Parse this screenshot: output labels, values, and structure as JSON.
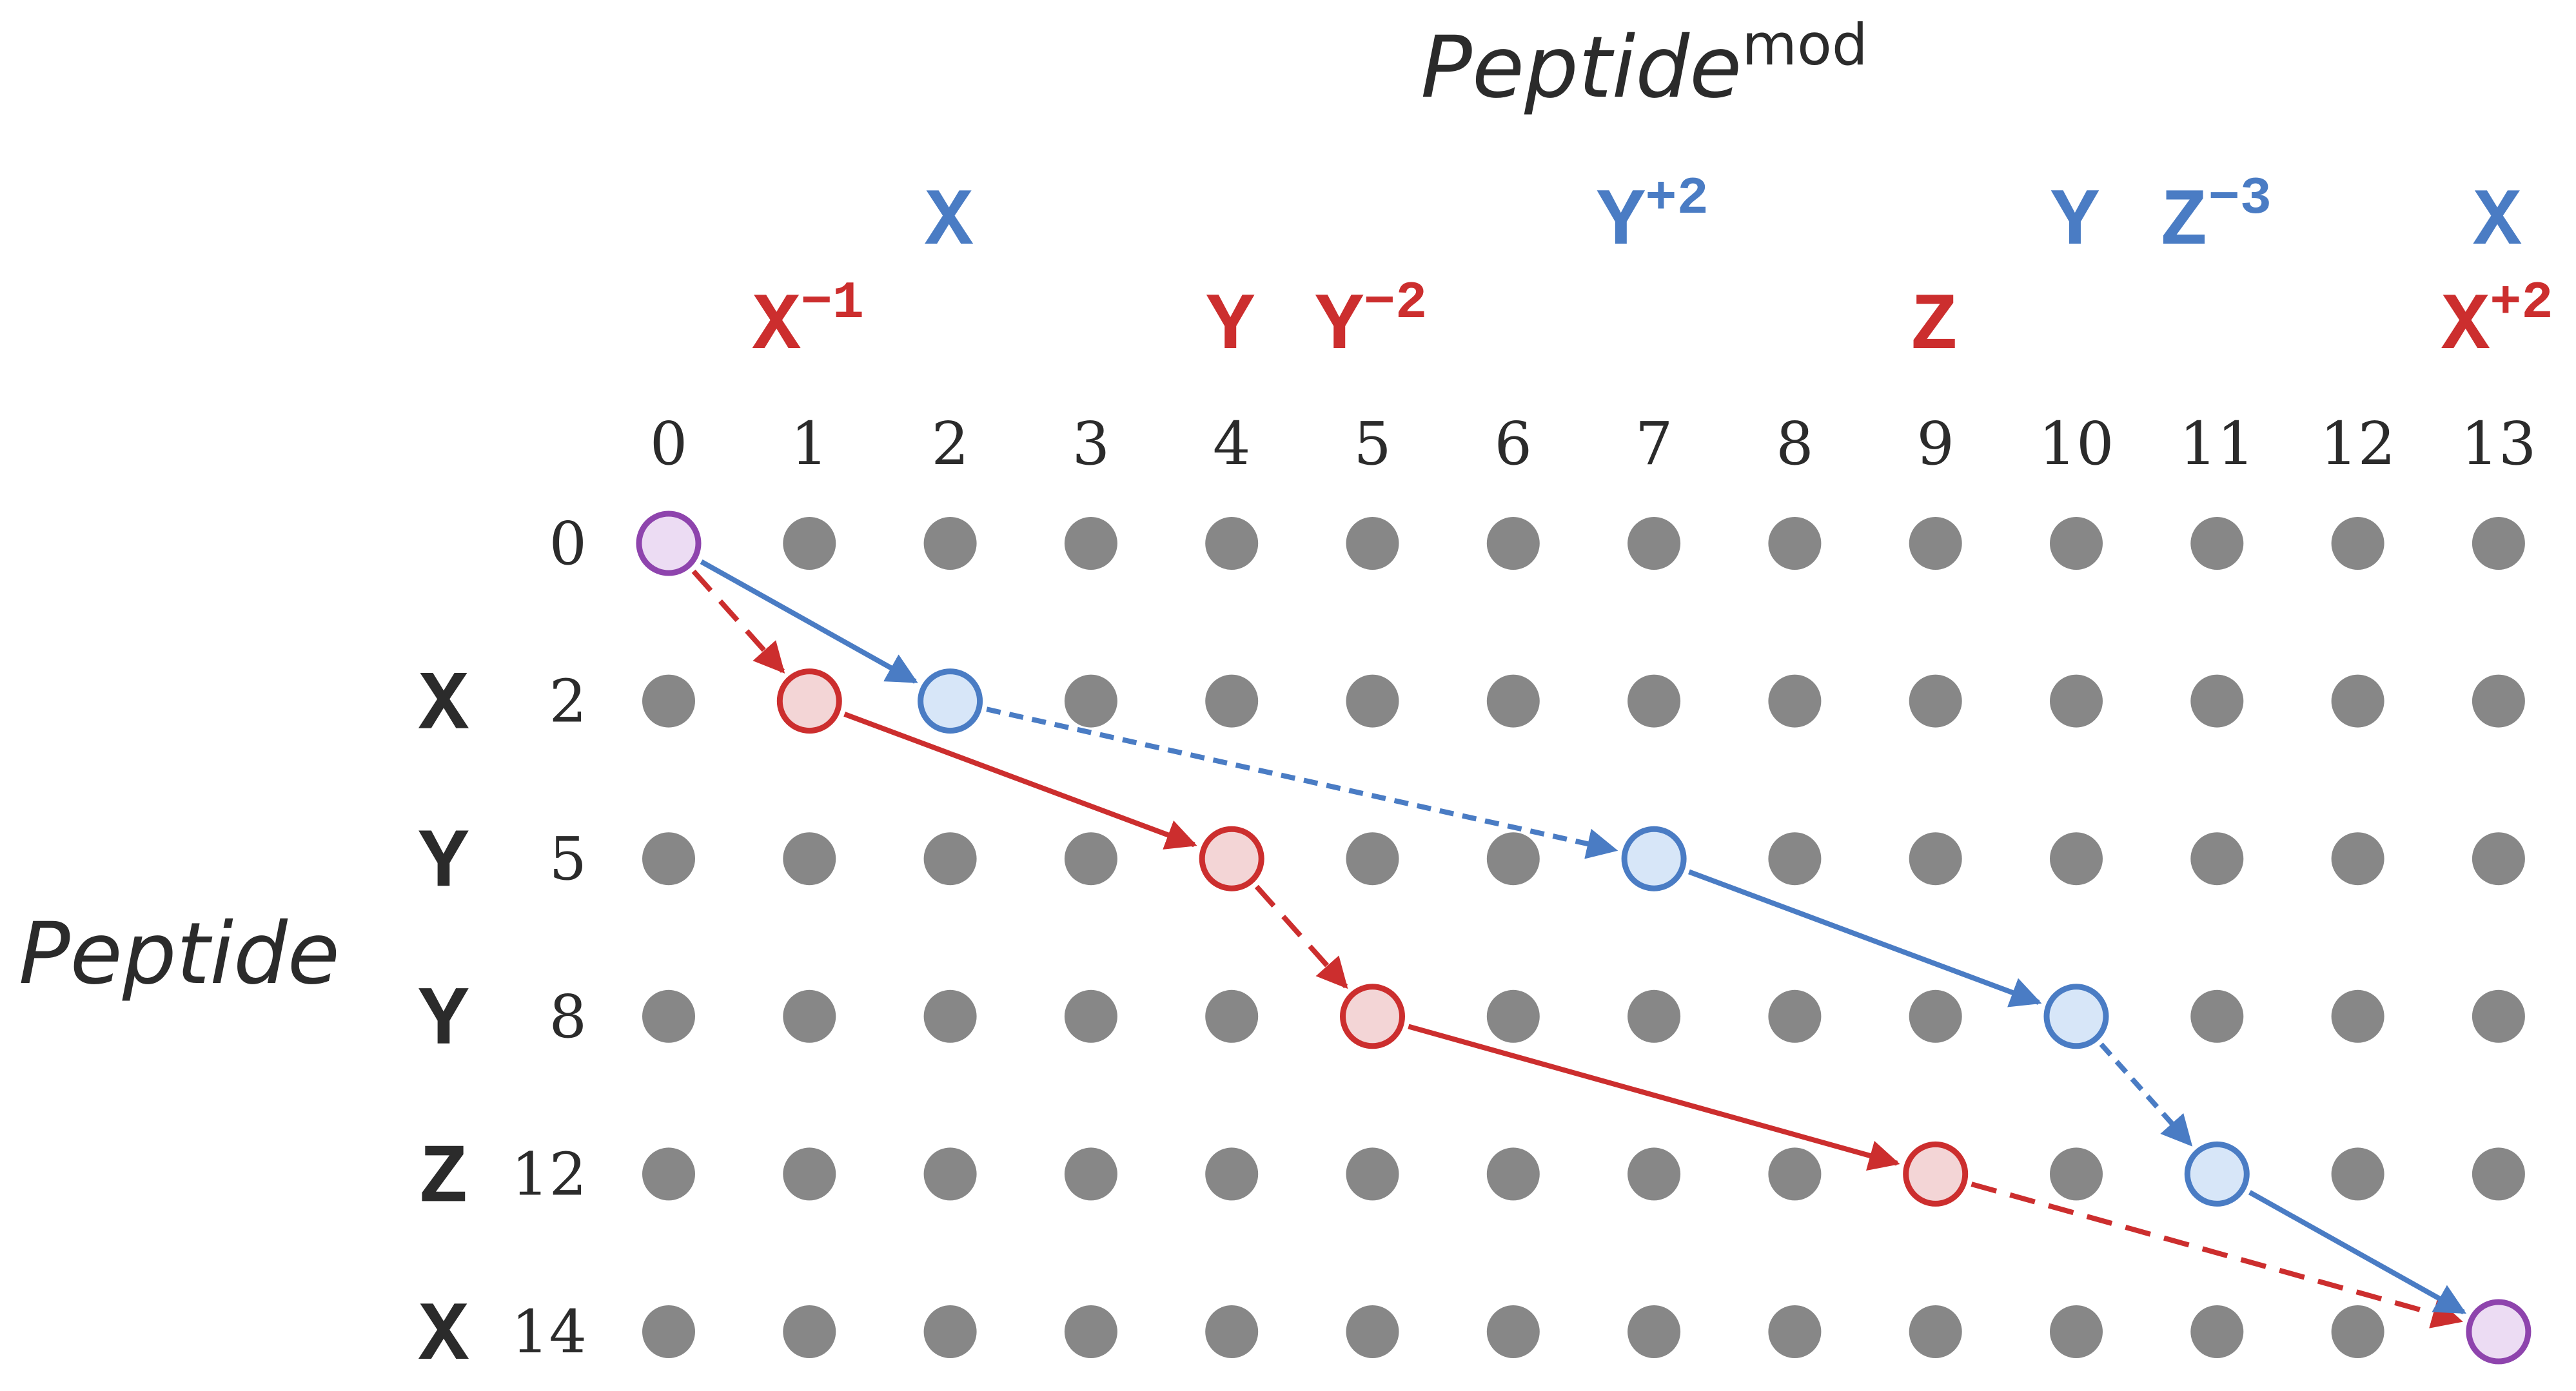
{
  "title": {
    "main": "Peptide",
    "sup": "mod"
  },
  "row_axis_label": "Peptide",
  "colors": {
    "red": "#cc2e2e",
    "blue": "#4a7cc4",
    "purple": "#8e44ad",
    "grid_dot": "#878787",
    "red_fill": "#f3d5d6",
    "blue_fill": "#d7e6f8",
    "purple_fill": "#ecdcf3",
    "text": "#2b2b2b"
  },
  "columns": [
    0,
    1,
    2,
    3,
    4,
    5,
    6,
    7,
    8,
    9,
    10,
    11,
    12,
    13
  ],
  "rows": [
    {
      "letter": "",
      "value": "0"
    },
    {
      "letter": "X",
      "value": "2"
    },
    {
      "letter": "Y",
      "value": "5"
    },
    {
      "letter": "Y",
      "value": "8"
    },
    {
      "letter": "Z",
      "value": "12"
    },
    {
      "letter": "X",
      "value": "14"
    }
  ],
  "top_labels": [
    {
      "letter": "X",
      "sup": "",
      "col": 2,
      "level": "upper",
      "color": "blue"
    },
    {
      "letter": "Y",
      "sup": "+2",
      "col": 7,
      "level": "upper",
      "color": "blue"
    },
    {
      "letter": "Y",
      "sup": "",
      "col": 10,
      "level": "upper",
      "color": "blue"
    },
    {
      "letter": "Z",
      "sup": "−3",
      "col": 11,
      "level": "upper",
      "color": "blue"
    },
    {
      "letter": "X",
      "sup": "",
      "col": 13,
      "level": "upper",
      "color": "blue"
    },
    {
      "letter": "X",
      "sup": "−1",
      "col": 1,
      "level": "lower",
      "color": "red"
    },
    {
      "letter": "Y",
      "sup": "",
      "col": 4,
      "level": "lower",
      "color": "red"
    },
    {
      "letter": "Y",
      "sup": "−2",
      "col": 5,
      "level": "lower",
      "color": "red"
    },
    {
      "letter": "Z",
      "sup": "",
      "col": 9,
      "level": "lower",
      "color": "red"
    },
    {
      "letter": "X",
      "sup": "+2",
      "col": 13,
      "level": "lower",
      "color": "red"
    }
  ],
  "paths": {
    "red": [
      {
        "from": [
          0,
          0
        ],
        "to": [
          1,
          1
        ],
        "style": "dashed"
      },
      {
        "from": [
          1,
          1
        ],
        "to": [
          4,
          2
        ],
        "style": "solid"
      },
      {
        "from": [
          4,
          2
        ],
        "to": [
          5,
          3
        ],
        "style": "dashed"
      },
      {
        "from": [
          5,
          3
        ],
        "to": [
          9,
          4
        ],
        "style": "solid"
      },
      {
        "from": [
          9,
          4
        ],
        "to": [
          13,
          5
        ],
        "style": "dashed"
      }
    ],
    "blue": [
      {
        "from": [
          0,
          0
        ],
        "to": [
          2,
          1
        ],
        "style": "solid"
      },
      {
        "from": [
          2,
          1
        ],
        "to": [
          7,
          2
        ],
        "style": "dotted"
      },
      {
        "from": [
          7,
          2
        ],
        "to": [
          10,
          3
        ],
        "style": "solid"
      },
      {
        "from": [
          10,
          3
        ],
        "to": [
          11,
          4
        ],
        "style": "dotted"
      },
      {
        "from": [
          11,
          4
        ],
        "to": [
          13,
          5
        ],
        "style": "solid"
      }
    ]
  },
  "highlight_nodes": {
    "start": [
      0,
      0
    ],
    "end": [
      13,
      5
    ],
    "red": [
      [
        1,
        1
      ],
      [
        4,
        2
      ],
      [
        5,
        3
      ],
      [
        9,
        4
      ]
    ],
    "blue": [
      [
        2,
        1
      ],
      [
        7,
        2
      ],
      [
        10,
        3
      ],
      [
        11,
        4
      ]
    ]
  }
}
